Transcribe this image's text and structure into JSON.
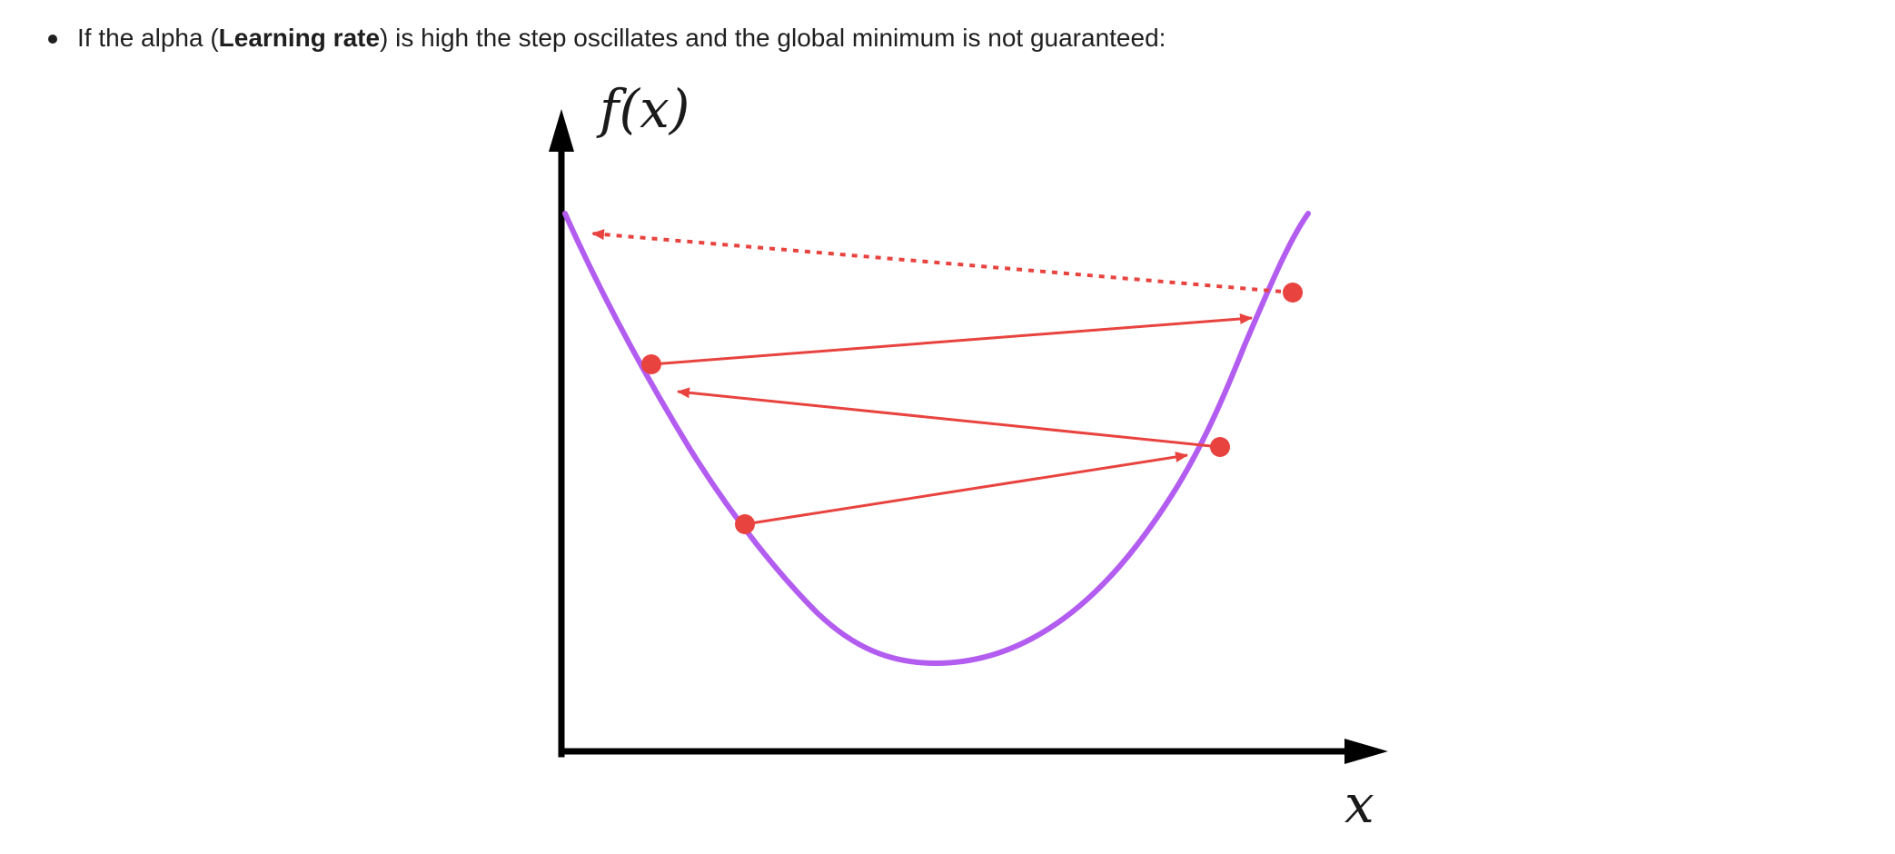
{
  "text": {
    "prefix": "If the alpha (",
    "bold": "Learning rate",
    "suffix": ") is high the step oscillates and the global minimum is not guaranteed:"
  },
  "diagram": {
    "y_axis_label": "f(x)",
    "x_axis_label": "x",
    "colors": {
      "axes": "#000000",
      "curve": "#b35cf0",
      "steps": "#e8433f"
    }
  }
}
